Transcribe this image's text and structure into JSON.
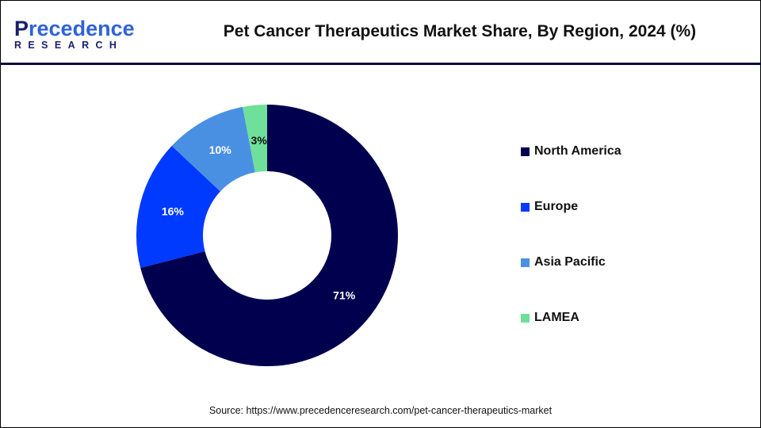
{
  "logo": {
    "text_main": "Precedence",
    "text_sub": "RESEARCH"
  },
  "chart_data": {
    "type": "pie",
    "subtype": "donut",
    "title": "Pet Cancer Therapeutics Market Share, By Region, 2024 (%)",
    "categories": [
      "North America",
      "Europe",
      "Asia Pacific",
      "LAMEA"
    ],
    "values": [
      71,
      16,
      10,
      3
    ],
    "labels": [
      "71%",
      "16%",
      "10%",
      "3%"
    ],
    "colors": [
      "#00004f",
      "#0039ff",
      "#4a90e2",
      "#6ee09a"
    ],
    "label_colors": [
      "#ffffff",
      "#ffffff",
      "#ffffff",
      "#111111"
    ],
    "legend_position": "right"
  },
  "source": "Source: https://www.precedenceresearch.com/pet-cancer-therapeutics-market"
}
